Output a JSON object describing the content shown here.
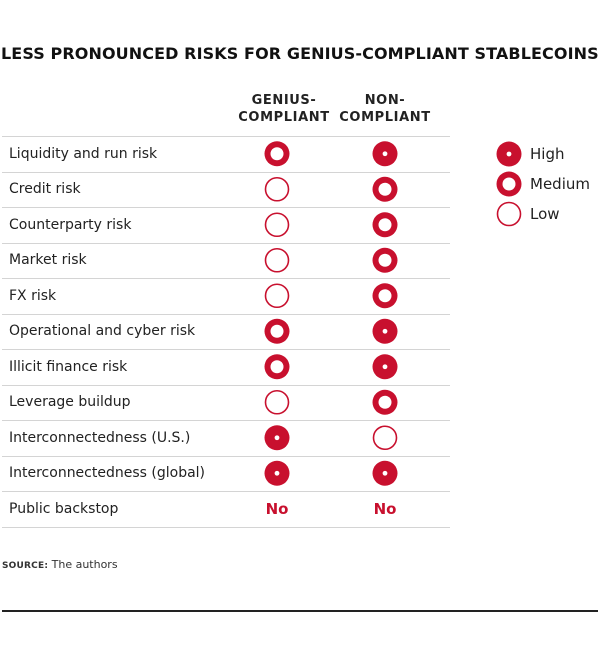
{
  "chart_data": {
    "type": "table",
    "title": "LESS PRONOUNCED RISKS FOR GENIUS-COMPLIANT STABLECOINS",
    "columns": [
      {
        "line1": "GENIUS-",
        "line2": "COMPLIANT"
      },
      {
        "line1": "NON-",
        "line2": "COMPLIANT"
      }
    ],
    "rows": [
      {
        "label": "Liquidity and run risk",
        "values": [
          "Medium",
          "High"
        ]
      },
      {
        "label": "Credit risk",
        "values": [
          "Low",
          "Medium"
        ]
      },
      {
        "label": "Counterparty risk",
        "values": [
          "Low",
          "Medium"
        ]
      },
      {
        "label": "Market risk",
        "values": [
          "Low",
          "Medium"
        ]
      },
      {
        "label": "FX risk",
        "values": [
          "Low",
          "Medium"
        ]
      },
      {
        "label": "Operational and cyber risk",
        "values": [
          "Medium",
          "High"
        ]
      },
      {
        "label": "Illicit finance risk",
        "values": [
          "Medium",
          "High"
        ]
      },
      {
        "label": "Leverage buildup",
        "values": [
          "Low",
          "Medium"
        ]
      },
      {
        "label": "Interconnectedness (U.S.)",
        "values": [
          "High",
          "Low"
        ]
      },
      {
        "label": "Interconnectedness (global)",
        "values": [
          "High",
          "High"
        ]
      },
      {
        "label": "Public backstop",
        "text_values": [
          "No",
          "No"
        ]
      }
    ],
    "legend": {
      "placement": "right",
      "items": [
        {
          "level": "High",
          "label": "High"
        },
        {
          "level": "Medium",
          "label": "Medium"
        },
        {
          "level": "Low",
          "label": "Low"
        }
      ]
    }
  },
  "source": {
    "prefix": "SOURCE:",
    "text": "The authors"
  },
  "colors": {
    "accent": "#c8102e",
    "text": "#222222",
    "rule": "#d4d4d4"
  }
}
